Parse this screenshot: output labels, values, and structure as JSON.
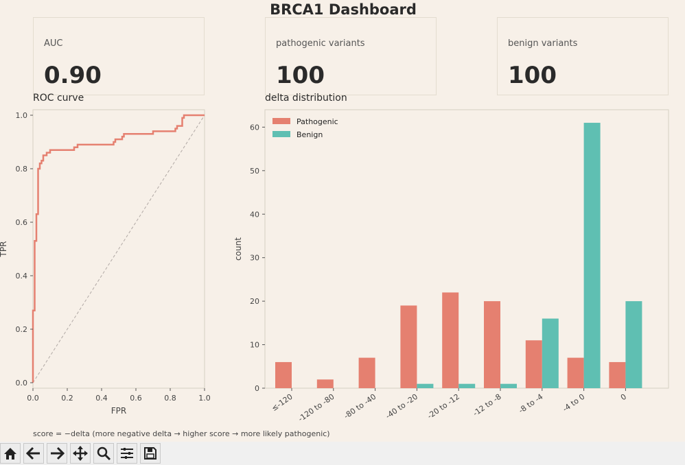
{
  "dashboard_title": "BRCA1 Dashboard",
  "cards": [
    {
      "label": "AUC",
      "value": "0.90"
    },
    {
      "label": "pathogenic variants",
      "value": "100"
    },
    {
      "label": "benign variants",
      "value": "100"
    }
  ],
  "footnote": "score = −delta  (more negative delta → higher score → more likely pathogenic)",
  "colors": {
    "pathogenic": "#e58070",
    "benign": "#5fbfb2",
    "diagonal": "#b0a8a4",
    "background": "#f7f0e8"
  },
  "toolbar": [
    "home-icon",
    "back-icon",
    "forward-icon",
    "pan-icon",
    "zoom-icon",
    "configure-icon",
    "save-icon"
  ],
  "chart_data": [
    {
      "type": "line",
      "title": "ROC curve",
      "xlabel": "FPR",
      "ylabel": "TPR",
      "xlim": [
        0,
        1
      ],
      "ylim": [
        0,
        1
      ],
      "xticks": [
        "0.0",
        "0.2",
        "0.4",
        "0.6",
        "0.8",
        "1.0"
      ],
      "yticks": [
        "0.0",
        "0.2",
        "0.4",
        "0.6",
        "0.8",
        "1.0"
      ],
      "grid": false,
      "series": [
        {
          "x": [
            0,
            0,
            0.01,
            0.01,
            0.02,
            0.02,
            0.03,
            0.03,
            0.04,
            0.04,
            0.05,
            0.05,
            0.06,
            0.06,
            0.08,
            0.08,
            0.1,
            0.1,
            0.12,
            0.12,
            0.14,
            0.24,
            0.24,
            0.26,
            0.26,
            0.47,
            0.47,
            0.48,
            0.48,
            0.52,
            0.52,
            0.53,
            0.53,
            0.69,
            0.69,
            0.7,
            0.7,
            0.83,
            0.83,
            0.84,
            0.84,
            0.87,
            0.87,
            0.88,
            0.88,
            1.0
          ],
          "y": [
            0,
            0.27,
            0.27,
            0.53,
            0.53,
            0.63,
            0.63,
            0.8,
            0.8,
            0.82,
            0.82,
            0.83,
            0.83,
            0.85,
            0.85,
            0.86,
            0.86,
            0.87,
            0.87,
            0.87,
            0.87,
            0.87,
            0.88,
            0.88,
            0.89,
            0.89,
            0.9,
            0.9,
            0.91,
            0.91,
            0.92,
            0.92,
            0.93,
            0.93,
            0.93,
            0.93,
            0.94,
            0.94,
            0.95,
            0.95,
            0.96,
            0.96,
            0.99,
            0.99,
            1.0,
            1.0
          ]
        }
      ],
      "diagonal": [
        [
          0,
          0
        ],
        [
          1,
          1
        ]
      ]
    },
    {
      "type": "bar",
      "title": "delta distribution",
      "xlabel": "",
      "ylabel": "count",
      "ylim": [
        0,
        64
      ],
      "yticks": [
        "0",
        "10",
        "20",
        "30",
        "40",
        "50",
        "60"
      ],
      "legend": "top-left",
      "grid": false,
      "categories": [
        "≤-120",
        "-120 to -80",
        "-80 to -40",
        "-40 to -20",
        "-20 to -12",
        "-12 to -8",
        "-8 to -4",
        "-4 to 0",
        "0"
      ],
      "series": [
        {
          "name": "Pathogenic",
          "values": [
            6,
            2,
            7,
            19,
            22,
            20,
            11,
            7,
            6
          ]
        },
        {
          "name": "Benign",
          "values": [
            0,
            0,
            0,
            1,
            1,
            1,
            16,
            61,
            20
          ]
        }
      ]
    }
  ]
}
